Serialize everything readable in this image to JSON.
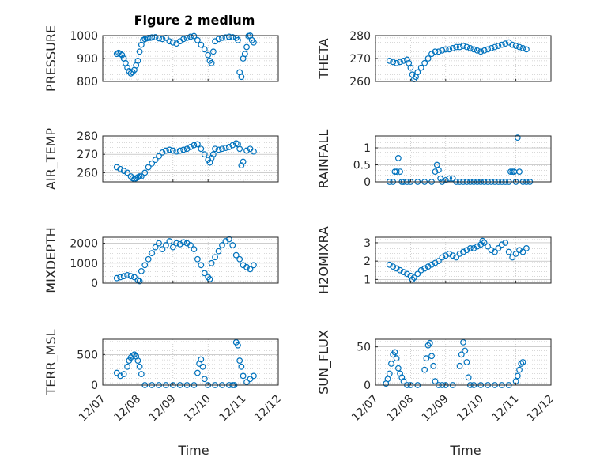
{
  "figure": {
    "title": "Figure 2 medium"
  },
  "colors": {
    "marker": "#0072bd",
    "axis": "#262626",
    "grid": "#b0b0b0"
  },
  "x_tick_labels": [
    "12/07",
    "12/08",
    "12/09",
    "12/10",
    "12/11",
    "12/12"
  ],
  "x_label": "Time",
  "chart_data": [
    {
      "type": "scatter",
      "ylabel": "PRESSURE",
      "ylim": [
        800,
        1000
      ],
      "yticks": [
        800,
        900,
        1000
      ],
      "xlim": [
        0,
        5
      ],
      "grid": true,
      "x": [
        0.4,
        0.45,
        0.5,
        0.55,
        0.6,
        0.65,
        0.7,
        0.75,
        0.8,
        0.85,
        0.9,
        0.95,
        1.0,
        1.05,
        1.1,
        1.15,
        1.2,
        1.25,
        1.3,
        1.35,
        1.4,
        1.5,
        1.6,
        1.7,
        1.8,
        1.9,
        2.0,
        2.1,
        2.2,
        2.3,
        2.4,
        2.5,
        2.6,
        2.7,
        2.8,
        2.9,
        3.0,
        3.05,
        3.1,
        3.15,
        3.2,
        3.3,
        3.4,
        3.5,
        3.6,
        3.7,
        3.8,
        3.85,
        3.9,
        3.95,
        4.0,
        4.05,
        4.1,
        4.15,
        4.2,
        4.25,
        4.3
      ],
      "y": [
        920,
        925,
        920,
        915,
        900,
        880,
        860,
        845,
        835,
        840,
        850,
        870,
        890,
        930,
        960,
        980,
        985,
        988,
        990,
        990,
        992,
        993,
        988,
        985,
        990,
        975,
        970,
        965,
        975,
        985,
        990,
        995,
        998,
        980,
        960,
        940,
        915,
        890,
        880,
        930,
        975,
        985,
        990,
        992,
        995,
        993,
        990,
        980,
        840,
        820,
        900,
        920,
        950,
        998,
        1000,
        980,
        970
      ]
    },
    {
      "type": "scatter",
      "ylabel": "THETA",
      "ylim": [
        260,
        280
      ],
      "yticks": [
        260,
        270,
        280
      ],
      "xlim": [
        0,
        5
      ],
      "grid": true,
      "x": [
        0.4,
        0.5,
        0.6,
        0.7,
        0.8,
        0.9,
        0.95,
        1.0,
        1.05,
        1.1,
        1.15,
        1.2,
        1.3,
        1.4,
        1.5,
        1.6,
        1.7,
        1.8,
        1.9,
        2.0,
        2.1,
        2.2,
        2.3,
        2.4,
        2.5,
        2.6,
        2.7,
        2.8,
        2.9,
        3.0,
        3.1,
        3.2,
        3.3,
        3.4,
        3.5,
        3.6,
        3.7,
        3.8,
        3.9,
        4.0,
        4.1,
        4.2,
        4.3
      ],
      "y": [
        269,
        268.5,
        268,
        268.5,
        269,
        269.5,
        268,
        266,
        263,
        261,
        262,
        264,
        266,
        268,
        270,
        272,
        273,
        273,
        273.5,
        274,
        274,
        274.5,
        275,
        275,
        275.5,
        275,
        274.5,
        274,
        273.5,
        273,
        273.5,
        274,
        274.5,
        275,
        275.5,
        276,
        276.5,
        277,
        276,
        275.5,
        275,
        274.5,
        274
      ]
    },
    {
      "type": "scatter",
      "ylabel": "AIR_TEMP",
      "ylim": [
        255,
        280
      ],
      "yticks": [
        260,
        270,
        280
      ],
      "xlim": [
        0,
        5
      ],
      "grid": true,
      "x": [
        0.4,
        0.5,
        0.6,
        0.7,
        0.8,
        0.85,
        0.9,
        0.95,
        1.0,
        1.05,
        1.1,
        1.2,
        1.3,
        1.4,
        1.5,
        1.6,
        1.7,
        1.8,
        1.9,
        2.0,
        2.1,
        2.2,
        2.3,
        2.4,
        2.5,
        2.6,
        2.7,
        2.8,
        2.9,
        3.0,
        3.05,
        3.1,
        3.15,
        3.2,
        3.3,
        3.4,
        3.5,
        3.6,
        3.7,
        3.8,
        3.85,
        3.9,
        3.95,
        4.0,
        4.1,
        4.2,
        4.3
      ],
      "y": [
        263,
        262,
        261,
        260,
        258,
        257,
        256.5,
        257,
        257.5,
        258,
        258,
        260,
        263,
        265,
        267,
        269,
        271,
        272,
        272.5,
        272,
        271.5,
        272,
        272.5,
        273,
        274,
        275,
        275.5,
        273,
        270,
        267,
        265.5,
        268,
        270,
        273,
        272.5,
        273,
        273.5,
        274,
        275,
        276,
        275.5,
        273,
        264,
        266,
        272,
        273,
        271.5
      ]
    },
    {
      "type": "scatter",
      "ylabel": "RAINFALL",
      "ylim": [
        0,
        1.35
      ],
      "yticks": [
        0,
        0.5,
        1
      ],
      "xlim": [
        0,
        5
      ],
      "grid": true,
      "x": [
        0.4,
        0.5,
        0.55,
        0.6,
        0.65,
        0.7,
        0.75,
        0.8,
        0.9,
        1.0,
        1.2,
        1.4,
        1.6,
        1.7,
        1.75,
        1.8,
        1.85,
        1.9,
        2.0,
        2.1,
        2.2,
        2.3,
        2.4,
        2.5,
        2.6,
        2.7,
        2.8,
        2.9,
        3.0,
        3.1,
        3.2,
        3.3,
        3.4,
        3.5,
        3.6,
        3.7,
        3.8,
        3.85,
        3.9,
        3.95,
        4.0,
        4.05,
        4.1,
        4.2,
        4.3,
        4.4
      ],
      "y": [
        0,
        0,
        0.3,
        0.3,
        0.7,
        0.3,
        0,
        0,
        0,
        0,
        0,
        0,
        0,
        0.3,
        0.5,
        0.35,
        0.1,
        0,
        0.05,
        0.1,
        0.1,
        0,
        0,
        0,
        0,
        0,
        0,
        0,
        0,
        0,
        0,
        0,
        0,
        0,
        0,
        0,
        0,
        0.3,
        0.3,
        0.3,
        0,
        1.3,
        0.3,
        0,
        0,
        0
      ]
    },
    {
      "type": "scatter",
      "ylabel": "MIXDEPTH",
      "ylim": [
        0,
        2300
      ],
      "yticks": [
        0,
        1000,
        2000
      ],
      "xlim": [
        0,
        5
      ],
      "grid": true,
      "x": [
        0.4,
        0.5,
        0.6,
        0.7,
        0.8,
        0.9,
        1.0,
        1.05,
        1.1,
        1.2,
        1.3,
        1.4,
        1.5,
        1.6,
        1.7,
        1.8,
        1.9,
        2.0,
        2.1,
        2.2,
        2.3,
        2.4,
        2.5,
        2.6,
        2.7,
        2.8,
        2.9,
        3.0,
        3.05,
        3.1,
        3.2,
        3.3,
        3.4,
        3.5,
        3.6,
        3.7,
        3.8,
        3.9,
        4.0,
        4.1,
        4.2,
        4.3
      ],
      "y": [
        250,
        300,
        350,
        400,
        350,
        300,
        150,
        100,
        600,
        900,
        1200,
        1500,
        1800,
        2000,
        1700,
        1900,
        2100,
        1800,
        2000,
        1950,
        2050,
        2000,
        1900,
        1700,
        1200,
        900,
        500,
        300,
        200,
        1000,
        1300,
        1600,
        1900,
        2100,
        2200,
        1900,
        1400,
        1200,
        900,
        800,
        700,
        900
      ]
    },
    {
      "type": "scatter",
      "ylabel": "H2OMIXRA",
      "ylim": [
        0.8,
        3.3
      ],
      "yticks": [
        1,
        2,
        3
      ],
      "xlim": [
        0,
        5
      ],
      "grid": true,
      "x": [
        0.4,
        0.5,
        0.6,
        0.7,
        0.8,
        0.9,
        1.0,
        1.05,
        1.1,
        1.2,
        1.3,
        1.4,
        1.5,
        1.6,
        1.7,
        1.8,
        1.9,
        2.0,
        2.1,
        2.2,
        2.3,
        2.4,
        2.5,
        2.6,
        2.7,
        2.8,
        2.9,
        3.0,
        3.05,
        3.1,
        3.2,
        3.3,
        3.4,
        3.5,
        3.6,
        3.7,
        3.8,
        3.9,
        4.0,
        4.1,
        4.2,
        4.3
      ],
      "y": [
        1.8,
        1.7,
        1.6,
        1.5,
        1.4,
        1.3,
        1.2,
        1.0,
        1.1,
        1.3,
        1.5,
        1.6,
        1.7,
        1.8,
        1.9,
        2.0,
        2.2,
        2.3,
        2.4,
        2.3,
        2.2,
        2.4,
        2.5,
        2.6,
        2.7,
        2.7,
        2.8,
        2.9,
        3.1,
        3.0,
        2.8,
        2.6,
        2.5,
        2.7,
        2.9,
        3.0,
        2.5,
        2.2,
        2.4,
        2.6,
        2.5,
        2.7
      ]
    },
    {
      "type": "scatter",
      "ylabel": "TERR_MSL",
      "ylim": [
        0,
        750
      ],
      "yticks": [
        0,
        500
      ],
      "xlim": [
        0,
        5
      ],
      "grid": true,
      "x": [
        0.4,
        0.5,
        0.6,
        0.7,
        0.75,
        0.8,
        0.85,
        0.9,
        0.95,
        1.0,
        1.05,
        1.1,
        1.2,
        1.4,
        1.6,
        1.8,
        2.0,
        2.2,
        2.4,
        2.6,
        2.7,
        2.75,
        2.8,
        2.85,
        2.9,
        3.0,
        3.2,
        3.4,
        3.6,
        3.7,
        3.75,
        3.8,
        3.85,
        3.9,
        3.95,
        4.0,
        4.1,
        4.2,
        4.3
      ],
      "y": [
        200,
        150,
        180,
        300,
        400,
        450,
        480,
        500,
        470,
        400,
        300,
        180,
        0,
        0,
        0,
        0,
        0,
        0,
        0,
        0,
        200,
        350,
        420,
        300,
        100,
        0,
        0,
        0,
        0,
        0,
        0,
        700,
        650,
        400,
        300,
        150,
        50,
        100,
        150
      ]
    },
    {
      "type": "scatter",
      "ylabel": "SUN_FLUX",
      "ylim": [
        0,
        60
      ],
      "yticks": [
        0,
        50
      ],
      "xlim": [
        0,
        5
      ],
      "grid": true,
      "x": [
        0.3,
        0.35,
        0.4,
        0.45,
        0.5,
        0.55,
        0.6,
        0.65,
        0.7,
        0.75,
        0.8,
        0.9,
        1.0,
        1.2,
        1.4,
        1.45,
        1.5,
        1.55,
        1.6,
        1.65,
        1.7,
        1.8,
        1.9,
        2.0,
        2.2,
        2.4,
        2.45,
        2.5,
        2.55,
        2.6,
        2.65,
        2.7,
        2.8,
        3.0,
        3.2,
        3.4,
        3.6,
        3.8,
        4.0,
        4.05,
        4.1,
        4.15,
        4.2
      ],
      "y": [
        2,
        8,
        15,
        28,
        40,
        43,
        35,
        22,
        15,
        10,
        5,
        0,
        0,
        0,
        20,
        35,
        52,
        55,
        38,
        25,
        5,
        0,
        0,
        0,
        0,
        25,
        40,
        56,
        45,
        30,
        10,
        0,
        0,
        0,
        0,
        0,
        0,
        0,
        5,
        12,
        20,
        28,
        30
      ]
    }
  ]
}
